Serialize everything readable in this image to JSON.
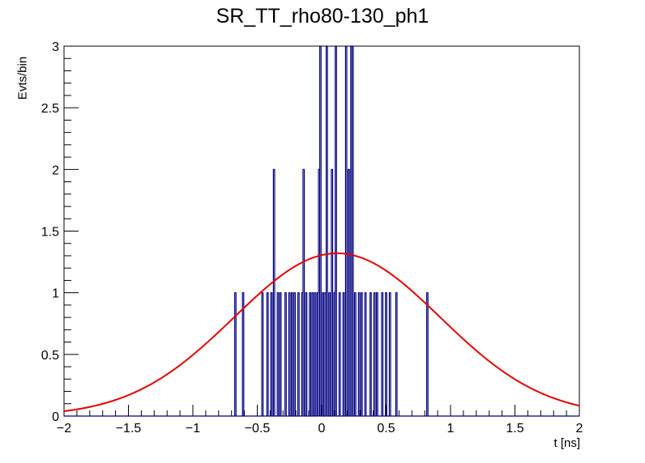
{
  "chart_data": {
    "type": "histogram",
    "title": "SR_TT_rho80-130_ph1",
    "xlabel": "t [ns]",
    "ylabel": "Evts/bin",
    "xlim": [
      -2,
      2
    ],
    "ylim": [
      0,
      3
    ],
    "x_ticks": [
      -2,
      -1.5,
      -1,
      -0.5,
      0,
      0.5,
      1,
      1.5,
      2
    ],
    "x_tick_labels": [
      "−2",
      "−1.5",
      "−1",
      "−0.5",
      "0",
      "0.5",
      "1",
      "1.5",
      "2"
    ],
    "y_ticks": [
      0,
      0.5,
      1,
      1.5,
      2,
      2.5,
      3
    ],
    "y_tick_labels": [
      "0",
      "0.5",
      "1",
      "1.5",
      "2",
      "2.5",
      "3"
    ],
    "grid": false,
    "histogram": {
      "name": "data",
      "color": "#000080",
      "bin_width": 0.01,
      "bins": [
        [
          -0.67,
          1
        ],
        [
          -0.61,
          1
        ],
        [
          -0.46,
          1
        ],
        [
          -0.42,
          1
        ],
        [
          -0.39,
          1
        ],
        [
          -0.37,
          2
        ],
        [
          -0.34,
          1
        ],
        [
          -0.32,
          1
        ],
        [
          -0.28,
          1
        ],
        [
          -0.25,
          1
        ],
        [
          -0.23,
          1
        ],
        [
          -0.21,
          1
        ],
        [
          -0.18,
          1
        ],
        [
          -0.15,
          1
        ],
        [
          -0.14,
          2
        ],
        [
          -0.12,
          1
        ],
        [
          -0.09,
          1
        ],
        [
          -0.07,
          1
        ],
        [
          -0.05,
          1
        ],
        [
          -0.03,
          1
        ],
        [
          -0.02,
          2
        ],
        [
          -0.01,
          3
        ],
        [
          0.01,
          1
        ],
        [
          0.03,
          1
        ],
        [
          0.04,
          3
        ],
        [
          0.06,
          1
        ],
        [
          0.08,
          2
        ],
        [
          0.1,
          1
        ],
        [
          0.11,
          3
        ],
        [
          0.14,
          1
        ],
        [
          0.17,
          1
        ],
        [
          0.19,
          3
        ],
        [
          0.21,
          2
        ],
        [
          0.23,
          3
        ],
        [
          0.24,
          3
        ],
        [
          0.26,
          1
        ],
        [
          0.29,
          1
        ],
        [
          0.31,
          1
        ],
        [
          0.34,
          1
        ],
        [
          0.38,
          1
        ],
        [
          0.41,
          1
        ],
        [
          0.43,
          1
        ],
        [
          0.47,
          1
        ],
        [
          0.5,
          1
        ],
        [
          0.53,
          1
        ],
        [
          0.58,
          1
        ],
        [
          0.82,
          1
        ]
      ]
    },
    "fit": {
      "name": "gaussian fit",
      "color": "#e60000",
      "amplitude": 1.32,
      "mean": 0.12,
      "sigma": 0.8
    }
  }
}
